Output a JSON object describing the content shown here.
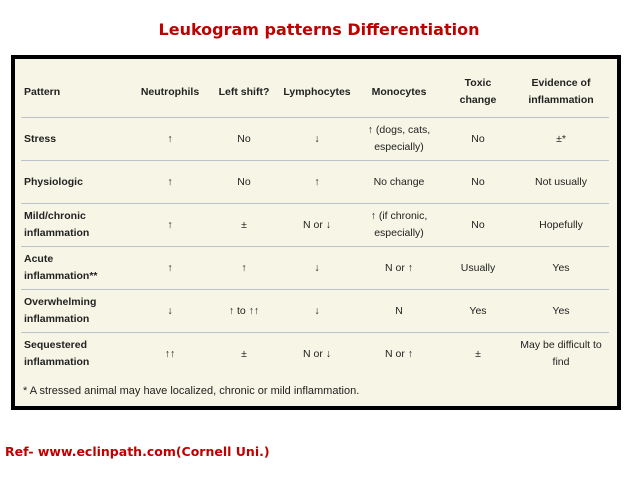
{
  "title": "Leukogram patterns Differentiation",
  "headers": [
    "Pattern",
    "Neutrophils",
    "Left shift?",
    "Lymphocytes",
    "Monocytes",
    "Toxic change",
    "Evidence of inflammation"
  ],
  "rows": [
    [
      "Stress",
      "↑",
      "No",
      "↓",
      "↑ (dogs, cats, especially)",
      "No",
      "±*"
    ],
    [
      "Physiologic",
      "↑",
      "No",
      "↑",
      "No change",
      "No",
      "Not usually"
    ],
    [
      "Mild/chronic inflammation",
      "↑",
      "±",
      "N or ↓",
      "↑ (if chronic, especially)",
      "No",
      "Hopefully"
    ],
    [
      "Acute inflammation**",
      "↑",
      "↑",
      "↓",
      "N or ↑",
      "Usually",
      "Yes"
    ],
    [
      "Overwhelming inflammation",
      "↓",
      "↑ to ↑↑",
      "↓",
      "N",
      "Yes",
      "Yes"
    ],
    [
      "Sequestered inflammation",
      "↑↑",
      "±",
      "N or ↓",
      "N or ↑",
      "±",
      "May be difficult to find"
    ]
  ],
  "footnote": "* A stressed animal may have localized, chronic or mild inflammation.",
  "reference": "Ref- www.eclinpath.com(Cornell Uni.)"
}
